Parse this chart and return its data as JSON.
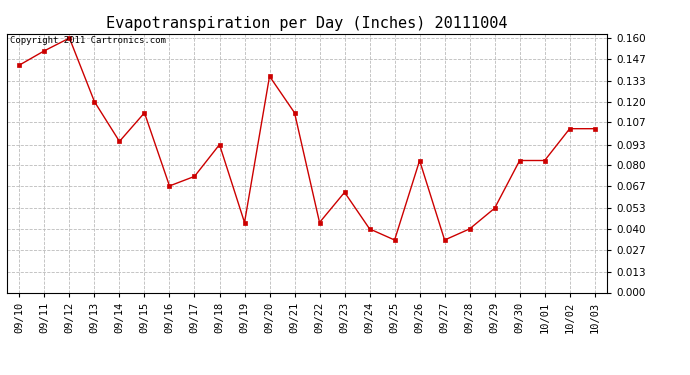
{
  "title": "Evapotranspiration per Day (Inches) 20111004",
  "copyright_text": "Copyright 2011 Cartronics.com",
  "x_labels": [
    "09/10",
    "09/11",
    "09/12",
    "09/13",
    "09/14",
    "09/15",
    "09/16",
    "09/17",
    "09/18",
    "09/19",
    "09/20",
    "09/21",
    "09/22",
    "09/23",
    "09/24",
    "09/25",
    "09/26",
    "09/27",
    "09/28",
    "09/29",
    "09/30",
    "10/01",
    "10/02",
    "10/03"
  ],
  "y_values": [
    0.143,
    0.152,
    0.16,
    0.12,
    0.095,
    0.113,
    0.067,
    0.073,
    0.093,
    0.044,
    0.136,
    0.113,
    0.044,
    0.063,
    0.04,
    0.033,
    0.083,
    0.033,
    0.04,
    0.053,
    0.083,
    0.083,
    0.103,
    0.103
  ],
  "line_color": "#cc0000",
  "marker": "s",
  "marker_size": 2.5,
  "background_color": "#ffffff",
  "grid_color": "#bbbbbb",
  "ylim": [
    0.0,
    0.1627
  ],
  "yticks": [
    0.0,
    0.013,
    0.027,
    0.04,
    0.053,
    0.067,
    0.08,
    0.093,
    0.107,
    0.12,
    0.133,
    0.147,
    0.16
  ],
  "title_fontsize": 11,
  "tick_fontsize": 7.5,
  "copyright_fontsize": 6.5
}
